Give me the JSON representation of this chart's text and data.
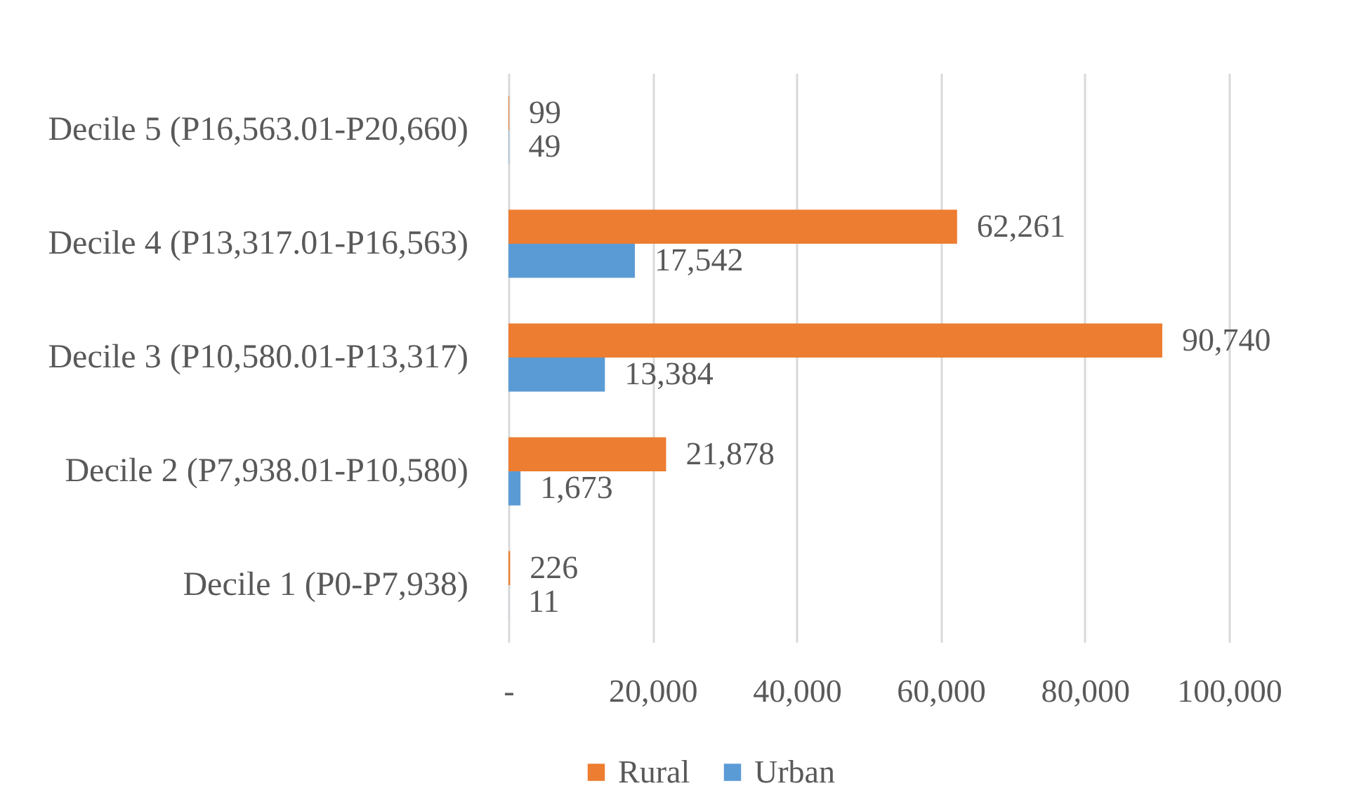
{
  "chart_data": {
    "type": "bar",
    "orientation": "horizontal",
    "categories": [
      "Decile 5 (P16,563.01-P20,660)",
      "Decile 4 (P13,317.01-P16,563)",
      "Decile 3 (P10,580.01-P13,317)",
      "Decile 2 (P7,938.01-P10,580)",
      "Decile 1 (P0-P7,938)"
    ],
    "series": [
      {
        "name": "Rural",
        "color": "#ed7d31",
        "values": [
          99,
          62261,
          90740,
          21878,
          226
        ],
        "value_labels": [
          "99",
          "62,261",
          "90,740",
          "21,878",
          "226"
        ]
      },
      {
        "name": "Urban",
        "color": "#5b9bd5",
        "values": [
          49,
          17542,
          13384,
          1673,
          11
        ],
        "value_labels": [
          "49",
          "17,542",
          "13,384",
          "1,673",
          "11"
        ]
      }
    ],
    "xlim": [
      0,
      100000
    ],
    "xticks": [
      {
        "value": 0,
        "label": "-"
      },
      {
        "value": 20000,
        "label": "20,000"
      },
      {
        "value": 40000,
        "label": "40,000"
      },
      {
        "value": 60000,
        "label": "60,000"
      },
      {
        "value": 80000,
        "label": "80,000"
      },
      {
        "value": 100000,
        "label": "100,000"
      }
    ],
    "grid": "x",
    "legend": "bottom"
  }
}
